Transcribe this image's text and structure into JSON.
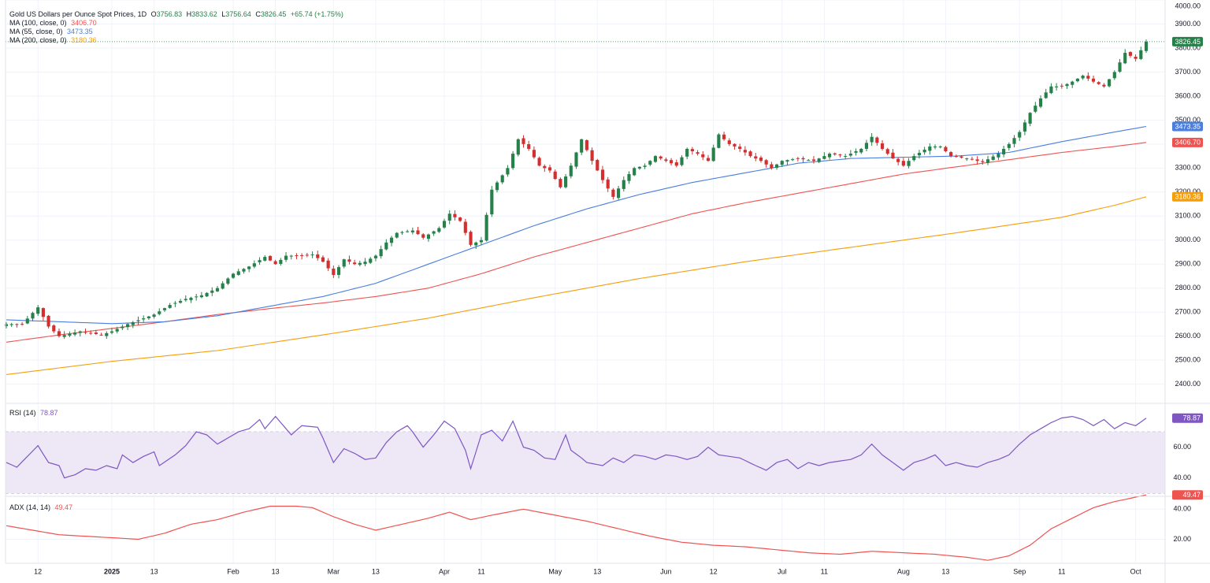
{
  "header": {
    "symbol": "Gold US Dollars per Ounce Spot Prices, 1D",
    "open_label": "O",
    "open": "3756.83",
    "high_label": "H",
    "high": "3833.62",
    "low_label": "L",
    "low": "3756.64",
    "close_label": "C",
    "close": "3826.45",
    "change": "+65.74 (+1.75%)"
  },
  "indicators": {
    "ma100": {
      "label": "MA (100, close, 0)",
      "value": "3406.70",
      "color": "#ef5350"
    },
    "ma55": {
      "label": "MA (55, close, 0)",
      "value": "3473.35",
      "color": "#4a7ee0"
    },
    "ma200": {
      "label": "MA (200, close, 0)",
      "value": "3180.36",
      "color": "#f59e0b"
    },
    "rsi": {
      "label": "RSI (14)",
      "value": "78.87",
      "color": "#7e57c2"
    },
    "adx": {
      "label": "ADX (14, 14)",
      "value": "49.47",
      "color": "#ef5350"
    }
  },
  "colors": {
    "up": "#26804a",
    "down": "#d32f2f",
    "grid": "#f0f3fa",
    "pane_border": "#e0e3eb",
    "rsi_band": "#ede7f6",
    "last_price": "#26804a"
  },
  "chart_data": {
    "type": "candlestick",
    "title": "Gold US Dollars per Ounce Spot Prices, 1D",
    "price_axis": {
      "ticks": [
        2400,
        2500,
        2600,
        2700,
        2800,
        2900,
        3000,
        3100,
        3200,
        3300,
        3400,
        3500,
        3600,
        3700,
        3800,
        3900,
        4000
      ],
      "range": [
        2320,
        4000
      ]
    },
    "last_price": 3826.45,
    "x_labels": [
      {
        "i": 6,
        "text": "12",
        "bold": false
      },
      {
        "i": 20,
        "text": "2025",
        "bold": true
      },
      {
        "i": 28,
        "text": "13",
        "bold": false
      },
      {
        "i": 43,
        "text": "Feb",
        "bold": false
      },
      {
        "i": 51,
        "text": "13",
        "bold": false
      },
      {
        "i": 62,
        "text": "Mar",
        "bold": false
      },
      {
        "i": 70,
        "text": "13",
        "bold": false
      },
      {
        "i": 83,
        "text": "Apr",
        "bold": false
      },
      {
        "i": 90,
        "text": "11",
        "bold": false
      },
      {
        "i": 104,
        "text": "May",
        "bold": false
      },
      {
        "i": 112,
        "text": "13",
        "bold": false
      },
      {
        "i": 125,
        "text": "Jun",
        "bold": false
      },
      {
        "i": 134,
        "text": "12",
        "bold": false
      },
      {
        "i": 147,
        "text": "Jul",
        "bold": false
      },
      {
        "i": 155,
        "text": "11",
        "bold": false
      },
      {
        "i": 170,
        "text": "Aug",
        "bold": false
      },
      {
        "i": 178,
        "text": "13",
        "bold": false
      },
      {
        "i": 192,
        "text": "Sep",
        "bold": false
      },
      {
        "i": 200,
        "text": "11",
        "bold": false
      },
      {
        "i": 214,
        "text": "Oct",
        "bold": false
      }
    ],
    "close_anchors": [
      [
        0,
        2650
      ],
      [
        3,
        2650
      ],
      [
        6,
        2720
      ],
      [
        8,
        2640
      ],
      [
        10,
        2600
      ],
      [
        14,
        2620
      ],
      [
        18,
        2605
      ],
      [
        20,
        2620
      ],
      [
        23,
        2650
      ],
      [
        28,
        2690
      ],
      [
        31,
        2730
      ],
      [
        34,
        2755
      ],
      [
        37,
        2770
      ],
      [
        40,
        2800
      ],
      [
        43,
        2860
      ],
      [
        46,
        2890
      ],
      [
        49,
        2930
      ],
      [
        51,
        2900
      ],
      [
        53,
        2935
      ],
      [
        56,
        2935
      ],
      [
        58,
        2940
      ],
      [
        60,
        2910
      ],
      [
        62,
        2855
      ],
      [
        64,
        2920
      ],
      [
        66,
        2900
      ],
      [
        68,
        2910
      ],
      [
        70,
        2935
      ],
      [
        72,
        2990
      ],
      [
        74,
        3030
      ],
      [
        77,
        3040
      ],
      [
        79,
        3010
      ],
      [
        82,
        3050
      ],
      [
        84,
        3110
      ],
      [
        86,
        3080
      ],
      [
        88,
        2980
      ],
      [
        90,
        3000
      ],
      [
        92,
        3210
      ],
      [
        95,
        3300
      ],
      [
        97,
        3420
      ],
      [
        99,
        3380
      ],
      [
        101,
        3310
      ],
      [
        103,
        3290
      ],
      [
        105,
        3220
      ],
      [
        107,
        3310
      ],
      [
        109,
        3420
      ],
      [
        111,
        3330
      ],
      [
        113,
        3250
      ],
      [
        115,
        3180
      ],
      [
        117,
        3250
      ],
      [
        119,
        3300
      ],
      [
        121,
        3310
      ],
      [
        123,
        3350
      ],
      [
        125,
        3330
      ],
      [
        127,
        3310
      ],
      [
        129,
        3380
      ],
      [
        131,
        3360
      ],
      [
        133,
        3330
      ],
      [
        135,
        3440
      ],
      [
        137,
        3400
      ],
      [
        139,
        3380
      ],
      [
        141,
        3350
      ],
      [
        143,
        3330
      ],
      [
        145,
        3300
      ],
      [
        147,
        3330
      ],
      [
        150,
        3340
      ],
      [
        153,
        3330
      ],
      [
        156,
        3360
      ],
      [
        159,
        3350
      ],
      [
        162,
        3380
      ],
      [
        164,
        3430
      ],
      [
        166,
        3380
      ],
      [
        168,
        3340
      ],
      [
        170,
        3310
      ],
      [
        172,
        3350
      ],
      [
        175,
        3390
      ],
      [
        177,
        3390
      ],
      [
        179,
        3350
      ],
      [
        182,
        3340
      ],
      [
        185,
        3325
      ],
      [
        188,
        3360
      ],
      [
        190,
        3400
      ],
      [
        192,
        3450
      ],
      [
        194,
        3530
      ],
      [
        196,
        3590
      ],
      [
        198,
        3640
      ],
      [
        200,
        3640
      ],
      [
        202,
        3660
      ],
      [
        204,
        3685
      ],
      [
        206,
        3660
      ],
      [
        208,
        3640
      ],
      [
        210,
        3700
      ],
      [
        212,
        3780
      ],
      [
        214,
        3755
      ],
      [
        216,
        3826.45
      ]
    ],
    "ma55": [
      [
        0,
        2668
      ],
      [
        10,
        2660
      ],
      [
        20,
        2652
      ],
      [
        30,
        2660
      ],
      [
        40,
        2685
      ],
      [
        50,
        2725
      ],
      [
        60,
        2765
      ],
      [
        70,
        2820
      ],
      [
        80,
        2900
      ],
      [
        90,
        2980
      ],
      [
        100,
        3060
      ],
      [
        110,
        3130
      ],
      [
        120,
        3190
      ],
      [
        130,
        3240
      ],
      [
        140,
        3280
      ],
      [
        150,
        3320
      ],
      [
        160,
        3340
      ],
      [
        170,
        3345
      ],
      [
        180,
        3350
      ],
      [
        190,
        3365
      ],
      [
        200,
        3410
      ],
      [
        210,
        3450
      ],
      [
        216,
        3473.35
      ]
    ],
    "ma100": [
      [
        0,
        2575
      ],
      [
        10,
        2605
      ],
      [
        20,
        2632
      ],
      [
        30,
        2660
      ],
      [
        40,
        2690
      ],
      [
        50,
        2715
      ],
      [
        60,
        2738
      ],
      [
        70,
        2765
      ],
      [
        80,
        2800
      ],
      [
        90,
        2860
      ],
      [
        100,
        2930
      ],
      [
        110,
        2990
      ],
      [
        120,
        3050
      ],
      [
        130,
        3110
      ],
      [
        140,
        3155
      ],
      [
        150,
        3195
      ],
      [
        160,
        3235
      ],
      [
        170,
        3275
      ],
      [
        180,
        3305
      ],
      [
        190,
        3335
      ],
      [
        200,
        3365
      ],
      [
        210,
        3390
      ],
      [
        216,
        3406.7
      ]
    ],
    "ma200": [
      [
        0,
        2440
      ],
      [
        20,
        2495
      ],
      [
        40,
        2540
      ],
      [
        60,
        2605
      ],
      [
        80,
        2675
      ],
      [
        100,
        2760
      ],
      [
        120,
        2840
      ],
      [
        140,
        2910
      ],
      [
        160,
        2970
      ],
      [
        180,
        3030
      ],
      [
        200,
        3095
      ],
      [
        210,
        3145
      ],
      [
        216,
        3180.36
      ]
    ],
    "rsi": {
      "ticks": [
        40,
        60
      ],
      "range": [
        28,
        88
      ],
      "upper_band": 70,
      "lower_band": 30,
      "mid": 50,
      "last": 78.87,
      "anchors": [
        [
          0,
          50
        ],
        [
          2,
          47
        ],
        [
          6,
          61
        ],
        [
          8,
          50
        ],
        [
          10,
          48
        ],
        [
          11,
          40
        ],
        [
          13,
          42
        ],
        [
          15,
          46
        ],
        [
          17,
          45
        ],
        [
          19,
          48
        ],
        [
          21,
          46
        ],
        [
          22,
          55
        ],
        [
          24,
          50
        ],
        [
          26,
          54
        ],
        [
          28,
          57
        ],
        [
          29,
          48
        ],
        [
          32,
          55
        ],
        [
          34,
          61
        ],
        [
          36,
          70
        ],
        [
          38,
          68
        ],
        [
          40,
          62
        ],
        [
          42,
          66
        ],
        [
          44,
          70
        ],
        [
          46,
          72
        ],
        [
          48,
          78
        ],
        [
          49,
          72
        ],
        [
          51,
          80
        ],
        [
          52,
          76
        ],
        [
          54,
          68
        ],
        [
          56,
          74
        ],
        [
          59,
          73
        ],
        [
          60,
          66
        ],
        [
          62,
          50
        ],
        [
          64,
          59
        ],
        [
          66,
          56
        ],
        [
          68,
          52
        ],
        [
          70,
          53
        ],
        [
          72,
          63
        ],
        [
          74,
          70
        ],
        [
          76,
          74
        ],
        [
          77,
          70
        ],
        [
          79,
          60
        ],
        [
          81,
          68
        ],
        [
          83,
          77
        ],
        [
          85,
          72
        ],
        [
          87,
          58
        ],
        [
          88,
          46
        ],
        [
          90,
          68
        ],
        [
          92,
          71
        ],
        [
          94,
          64
        ],
        [
          96,
          77
        ],
        [
          98,
          60
        ],
        [
          100,
          58
        ],
        [
          102,
          53
        ],
        [
          104,
          52
        ],
        [
          106,
          68
        ],
        [
          107,
          58
        ],
        [
          109,
          53
        ],
        [
          110,
          50
        ],
        [
          113,
          48
        ],
        [
          115,
          53
        ],
        [
          117,
          50
        ],
        [
          119,
          55
        ],
        [
          121,
          54
        ],
        [
          123,
          52
        ],
        [
          125,
          55
        ],
        [
          127,
          54
        ],
        [
          129,
          52
        ],
        [
          131,
          54
        ],
        [
          133,
          60
        ],
        [
          135,
          55
        ],
        [
          137,
          54
        ],
        [
          139,
          53
        ],
        [
          142,
          48
        ],
        [
          144,
          45
        ],
        [
          146,
          50
        ],
        [
          148,
          52
        ],
        [
          150,
          46
        ],
        [
          152,
          50
        ],
        [
          154,
          48
        ],
        [
          156,
          50
        ],
        [
          158,
          51
        ],
        [
          160,
          52
        ],
        [
          162,
          55
        ],
        [
          164,
          62
        ],
        [
          166,
          55
        ],
        [
          168,
          50
        ],
        [
          170,
          45
        ],
        [
          172,
          50
        ],
        [
          174,
          52
        ],
        [
          176,
          55
        ],
        [
          178,
          48
        ],
        [
          180,
          50
        ],
        [
          182,
          48
        ],
        [
          184,
          47
        ],
        [
          186,
          50
        ],
        [
          188,
          52
        ],
        [
          190,
          55
        ],
        [
          192,
          62
        ],
        [
          194,
          68
        ],
        [
          196,
          72
        ],
        [
          198,
          76
        ],
        [
          200,
          79
        ],
        [
          202,
          80
        ],
        [
          204,
          78
        ],
        [
          206,
          74
        ],
        [
          208,
          78
        ],
        [
          210,
          72
        ],
        [
          212,
          76
        ],
        [
          214,
          74
        ],
        [
          216,
          78.87
        ]
      ]
    },
    "adx": {
      "ticks": [
        20,
        40
      ],
      "range": [
        4,
        48
      ],
      "last": 49.47,
      "anchors": [
        [
          0,
          29
        ],
        [
          5,
          26
        ],
        [
          10,
          23
        ],
        [
          20,
          21
        ],
        [
          25,
          20
        ],
        [
          30,
          24
        ],
        [
          35,
          30
        ],
        [
          40,
          33
        ],
        [
          45,
          38
        ],
        [
          50,
          42
        ],
        [
          55,
          42
        ],
        [
          58,
          41
        ],
        [
          62,
          35
        ],
        [
          66,
          30
        ],
        [
          70,
          26
        ],
        [
          75,
          30
        ],
        [
          80,
          34
        ],
        [
          84,
          38
        ],
        [
          88,
          33
        ],
        [
          92,
          36
        ],
        [
          98,
          40
        ],
        [
          104,
          36
        ],
        [
          110,
          32
        ],
        [
          116,
          27
        ],
        [
          122,
          22
        ],
        [
          128,
          18
        ],
        [
          134,
          16
        ],
        [
          140,
          15
        ],
        [
          146,
          13
        ],
        [
          152,
          11
        ],
        [
          158,
          10
        ],
        [
          164,
          12
        ],
        [
          170,
          11
        ],
        [
          176,
          10
        ],
        [
          182,
          8
        ],
        [
          186,
          6
        ],
        [
          190,
          9
        ],
        [
          194,
          16
        ],
        [
          198,
          27
        ],
        [
          202,
          34
        ],
        [
          206,
          41
        ],
        [
          210,
          45
        ],
        [
          216,
          49.47
        ]
      ]
    }
  }
}
